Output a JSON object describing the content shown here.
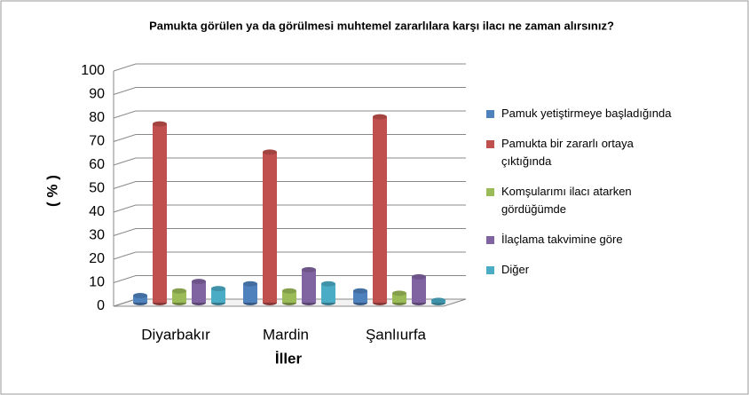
{
  "chart_data": {
    "type": "bar",
    "title": "Pamukta görülen ya da görülmesi muhtemel zararlılara karşı ilacı ne zaman alırsınız?",
    "x_label": "İller",
    "y_label": "( % )",
    "categories": [
      "Diyarbakır",
      "Mardin",
      "Şanlıurfa"
    ],
    "series": [
      {
        "name": "Pamuk yetiştirmeye başladığında",
        "color": "#4f81bd",
        "values": [
          3,
          8,
          5
        ]
      },
      {
        "name": "Pamukta bir zararlı ortaya çıktığında",
        "color": "#c0504d",
        "values": [
          76,
          64,
          79
        ]
      },
      {
        "name": "Komşularımı ilacı atarken gördüğümde",
        "color": "#9bbb59",
        "values": [
          5,
          5,
          4
        ]
      },
      {
        "name": "İlaçlama takvimine göre",
        "color": "#8064a2",
        "values": [
          9,
          14,
          11
        ]
      },
      {
        "name": "Diğer",
        "color": "#4bacc6",
        "values": [
          6,
          8,
          1
        ]
      }
    ],
    "ylim": [
      0,
      100
    ],
    "yticks": [
      0,
      10,
      20,
      30,
      40,
      50,
      60,
      70,
      80,
      90,
      100
    ],
    "grid": true,
    "legend": "right"
  }
}
